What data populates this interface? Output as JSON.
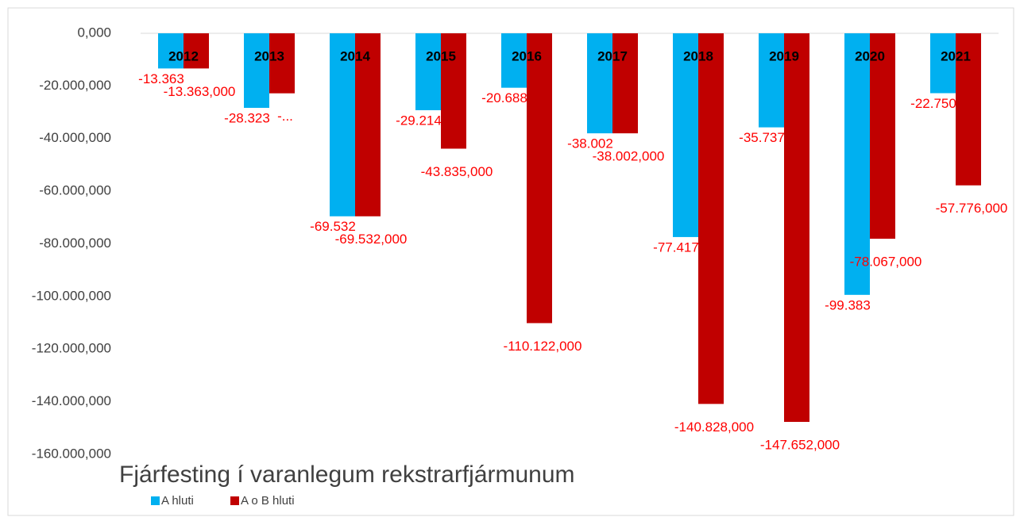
{
  "chart_data": {
    "type": "bar",
    "title": "Fjárfesting í varanlegum rekstrarfjármunum",
    "categories": [
      "2012",
      "2013",
      "2014",
      "2015",
      "2016",
      "2017",
      "2018",
      "2019",
      "2020",
      "2021"
    ],
    "series": [
      {
        "name": "A hluti",
        "color": "#00b0f0",
        "values": [
          -13363,
          -28323,
          -69532,
          -29214,
          -20688,
          -38002,
          -77417,
          -35737,
          -99383,
          -22750
        ],
        "value_labels": [
          "-13.363",
          "-28.323",
          "-69.532",
          "-29.214",
          "-20.688",
          "-38.002",
          "-77.417",
          "-35.737",
          "-99.383",
          "-22.750"
        ]
      },
      {
        "name": "A o B hluti",
        "color": "#c00000",
        "values": [
          -13363,
          -22800,
          -69532,
          -43835,
          -110122,
          -38002,
          -140828,
          -147652,
          -78067,
          -57776
        ],
        "value_labels": [
          "-13.363,000",
          "-...",
          "-69.532,000",
          "-43.835,000",
          "-110.122,000",
          "-38.002,000",
          "-140.828,000",
          "-147.652,000",
          "-78.067,000",
          "-57.776,000"
        ]
      }
    ],
    "ylim": [
      -160000,
      0
    ],
    "yticks": [
      {
        "value": 0,
        "label": "0,000"
      },
      {
        "value": -20000,
        "label": "-20.000,000"
      },
      {
        "value": -40000,
        "label": "-40.000,000"
      },
      {
        "value": -60000,
        "label": "-60.000,000"
      },
      {
        "value": -80000,
        "label": "-80.000,000"
      },
      {
        "value": -100000,
        "label": "-100.000,000"
      },
      {
        "value": -120000,
        "label": "-120.000,000"
      },
      {
        "value": -140000,
        "label": "-140.000,000"
      },
      {
        "value": -160000,
        "label": "-160.000,000"
      }
    ],
    "grid": false,
    "legend": "bottom-left",
    "value_label_color": "#ff0000"
  }
}
